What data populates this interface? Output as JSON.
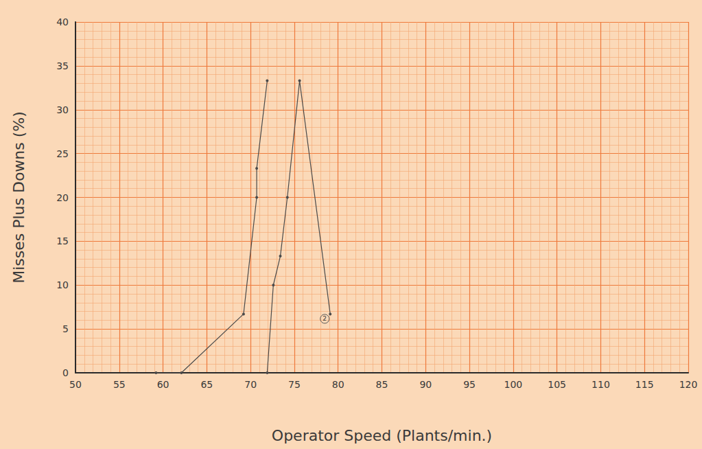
{
  "chart_data": {
    "type": "line",
    "x_label": "Operator Speed (Plants/min.)",
    "y_label": "Misses Plus Downs (%)",
    "series": [
      {
        "x": [
          59.2,
          62.1,
          69.2,
          70.7,
          70.7,
          71.9
        ],
        "values": [
          0,
          0,
          6.7,
          20,
          23.3,
          33.3
        ],
        "color": "#4a4a4a",
        "marker": "dot"
      },
      {
        "x": [
          71.9,
          72.6,
          73.4,
          74.2,
          75.6,
          79.1
        ],
        "values": [
          0,
          10,
          13.3,
          20,
          33.3,
          6.7
        ],
        "color": "#4a4a4a",
        "marker": "dot"
      }
    ],
    "annotations": [
      {
        "text": "2",
        "x": 79.1,
        "y": 6.7
      }
    ],
    "xlim": [
      50,
      120
    ],
    "xticks": [
      50,
      55,
      60,
      65,
      70,
      75,
      80,
      85,
      90,
      95,
      100,
      105,
      110,
      115,
      120
    ],
    "ylim": [
      0,
      40
    ],
    "yticks": [
      0,
      5,
      10,
      15,
      20,
      25,
      30,
      35,
      40
    ],
    "grid": true
  }
}
